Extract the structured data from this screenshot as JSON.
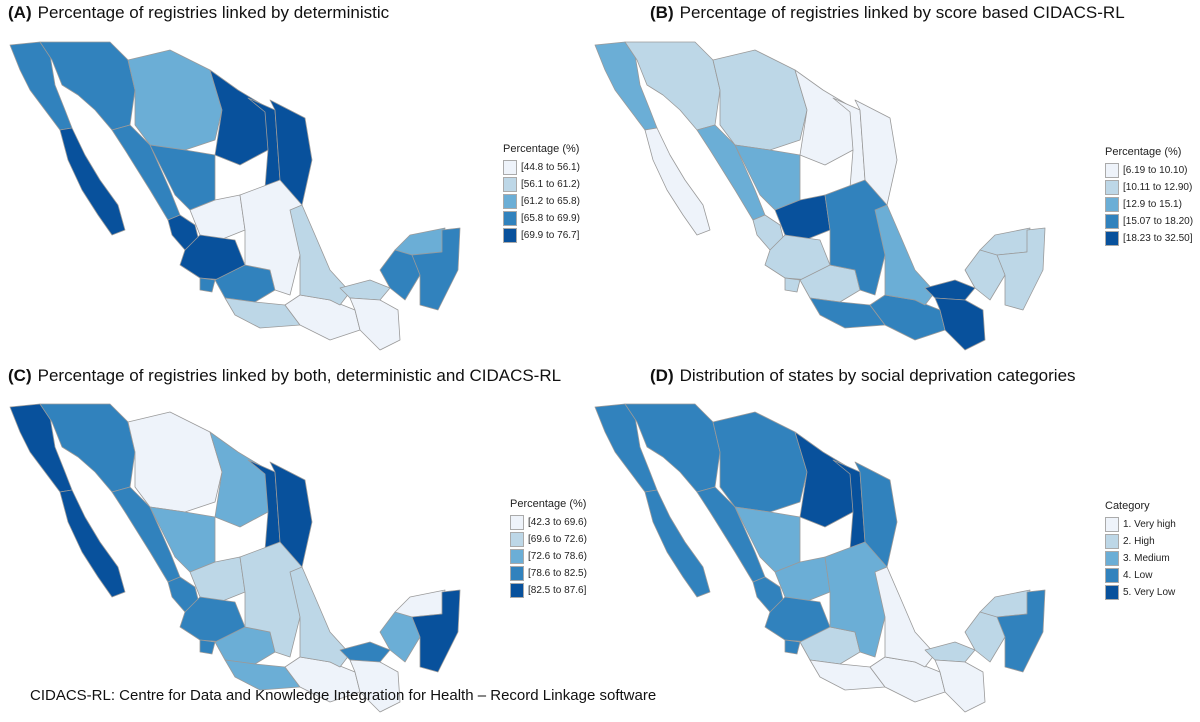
{
  "panels": [
    {
      "letter": "(A)",
      "title": "Percentage of registries linked by deterministic",
      "legend_title": "Percentage (%)",
      "legend": [
        "[44.8 to 56.1)",
        "[56.1 to 61.2)",
        "[61.2 to 65.8)",
        "[65.8 to 69.9)",
        "[69.9 to 76.7]"
      ]
    },
    {
      "letter": "(B)",
      "title": "Percentage of registries linked by score based CIDACS-RL",
      "legend_title": "Percentage (%)",
      "legend": [
        "[6.19 to 10.10)",
        "[10.11 to 12.90)",
        "[12.9 to 15.1)",
        "[15.07 to 18.20)",
        "[18.23 to 32.50]"
      ]
    },
    {
      "letter": "(C)",
      "title": "Percentage of registries linked by both, deterministic and CIDACS-RL",
      "legend_title": "Percentage (%)",
      "legend": [
        "[42.3 to 69.6)",
        "[69.6 to 72.6)",
        "[72.6 to 78.6)",
        "[78.6 to 82.5)",
        "[82.5 to 87.6]"
      ]
    },
    {
      "letter": "(D)",
      "title": "Distribution of states by social deprivation categories",
      "legend_title": "Category",
      "legend": [
        "1. Very high",
        "2. High",
        "3. Medium",
        "4. Low",
        "5. Very Low"
      ]
    }
  ],
  "colors": [
    "#eef3fa",
    "#bdd7e7",
    "#6baed6",
    "#3182bd",
    "#08519c"
  ],
  "regions": [
    "baja_california",
    "baja_california_sur",
    "sonora",
    "chihuahua",
    "coahuila",
    "nuevo_leon",
    "tamaulipas",
    "sinaloa",
    "durango",
    "nayarit",
    "zacatecas",
    "jalisco",
    "colima",
    "michoacan",
    "center",
    "guerrero",
    "oaxaca",
    "veracruz",
    "tabasco",
    "chiapas",
    "campeche",
    "yucatan",
    "quintana_roo"
  ],
  "maps": [
    {
      "baja_california": 3,
      "baja_california_sur": 4,
      "sonora": 3,
      "chihuahua": 2,
      "coahuila": 4,
      "nuevo_leon": 4,
      "tamaulipas": 4,
      "sinaloa": 3,
      "durango": 3,
      "nayarit": 4,
      "zacatecas": 0,
      "jalisco": 4,
      "colima": 3,
      "michoacan": 3,
      "center": 0,
      "guerrero": 1,
      "oaxaca": 0,
      "veracruz": 1,
      "tabasco": 1,
      "chiapas": 0,
      "campeche": 3,
      "yucatan": 2,
      "quintana_roo": 3
    },
    {
      "baja_california": 2,
      "baja_california_sur": 0,
      "sonora": 1,
      "chihuahua": 1,
      "coahuila": 0,
      "nuevo_leon": 0,
      "tamaulipas": 0,
      "sinaloa": 2,
      "durango": 2,
      "nayarit": 1,
      "zacatecas": 4,
      "jalisco": 1,
      "colima": 1,
      "michoacan": 1,
      "center": 3,
      "guerrero": 3,
      "oaxaca": 3,
      "veracruz": 2,
      "tabasco": 4,
      "chiapas": 4,
      "campeche": 1,
      "yucatan": 1,
      "quintana_roo": 1
    },
    {
      "baja_california": 4,
      "baja_california_sur": 4,
      "sonora": 3,
      "chihuahua": 0,
      "coahuila": 2,
      "nuevo_leon": 4,
      "tamaulipas": 4,
      "sinaloa": 3,
      "durango": 2,
      "nayarit": 3,
      "zacatecas": 1,
      "jalisco": 3,
      "colima": 3,
      "michoacan": 2,
      "center": 1,
      "guerrero": 2,
      "oaxaca": 0,
      "veracruz": 1,
      "tabasco": 3,
      "chiapas": 0,
      "campeche": 2,
      "yucatan": 0,
      "quintana_roo": 4
    },
    {
      "baja_california": 3,
      "baja_california_sur": 3,
      "sonora": 3,
      "chihuahua": 3,
      "coahuila": 4,
      "nuevo_leon": 4,
      "tamaulipas": 3,
      "sinaloa": 3,
      "durango": 2,
      "nayarit": 3,
      "zacatecas": 2,
      "jalisco": 3,
      "colima": 3,
      "michoacan": 1,
      "center": 2,
      "guerrero": 0,
      "oaxaca": 0,
      "veracruz": 0,
      "tabasco": 1,
      "chiapas": 0,
      "campeche": 1,
      "yucatan": 1,
      "quintana_roo": 3
    }
  ],
  "footnote": "CIDACS-RL: Centre for Data and Knowledge Integration for Health – Record Linkage software"
}
